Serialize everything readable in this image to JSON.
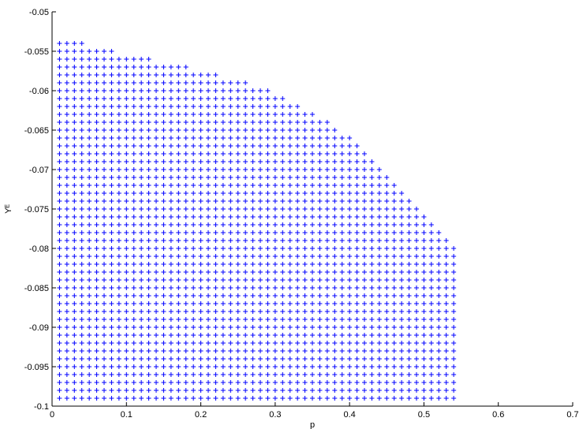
{
  "chart_data": {
    "type": "scatter",
    "title": "",
    "xlabel": "p",
    "ylabel": "Yᴱ",
    "xlim": [
      0,
      0.7
    ],
    "ylim": [
      -0.1,
      -0.05
    ],
    "grid": false,
    "marker": "+",
    "marker_color": "#0000ff",
    "x_ticks": [
      "0",
      "0.1",
      "0.2",
      "0.3",
      "0.4",
      "0.5",
      "0.6",
      "0.7"
    ],
    "y_ticks": [
      "-0.05",
      "-0.055",
      "-0.06",
      "-0.065",
      "-0.07",
      "-0.075",
      "-0.08",
      "-0.085",
      "-0.09",
      "-0.095",
      "-0.1"
    ],
    "x_grid": {
      "start": 0.01,
      "step": 0.01
    },
    "y_grid": {
      "start": -0.099,
      "step": 0.001
    },
    "series": [
      {
        "row_max_x": [
          0.54,
          0.54,
          0.54,
          0.54,
          0.54,
          0.54,
          0.54,
          0.54,
          0.54,
          0.54,
          0.54,
          0.54,
          0.54,
          0.54,
          0.54,
          0.54,
          0.54,
          0.54,
          0.54,
          0.54,
          0.53,
          0.52,
          0.51,
          0.5,
          0.49,
          0.48,
          0.47,
          0.46,
          0.45,
          0.44,
          0.43,
          0.42,
          0.41,
          0.4,
          0.38,
          0.37,
          0.35,
          0.33,
          0.31,
          0.29,
          0.26,
          0.22,
          0.18,
          0.13,
          0.08,
          0.04
        ]
      }
    ]
  }
}
